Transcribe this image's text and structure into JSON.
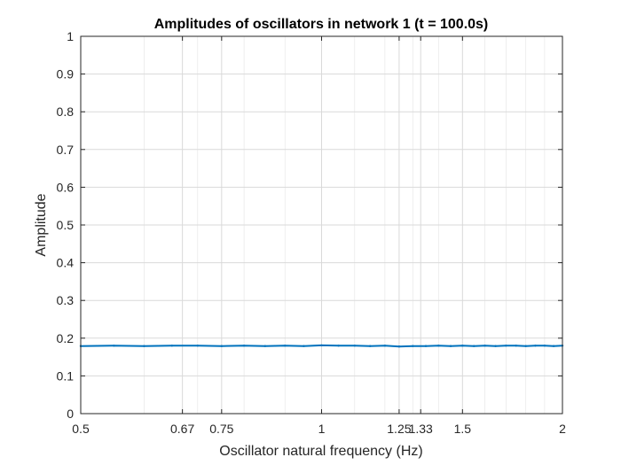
{
  "chart_data": {
    "type": "line",
    "title": "Amplitudes of oscillators in network 1 (t = 100.0s)",
    "xlabel": "Oscillator natural frequency (Hz)",
    "ylabel": "Amplitude",
    "x_scale": "log",
    "xlim": [
      0.5,
      2
    ],
    "ylim": [
      0,
      1
    ],
    "xticks": [
      0.5,
      0.67,
      0.75,
      1,
      1.25,
      1.33,
      1.5,
      2
    ],
    "xtick_labels": [
      "0.5",
      "0.67",
      "0.75",
      "1",
      "1.25",
      "1.33",
      "1.5",
      "2"
    ],
    "yticks": [
      0,
      0.1,
      0.2,
      0.3,
      0.4,
      0.5,
      0.6,
      0.7,
      0.8,
      0.9,
      1
    ],
    "ytick_labels": [
      "0",
      "0.1",
      "0.2",
      "0.3",
      "0.4",
      "0.5",
      "0.6",
      "0.7",
      "0.8",
      "0.9",
      "1"
    ],
    "minor_grid_x": [
      0.6,
      0.7,
      0.8,
      0.9,
      1.1,
      1.2,
      1.3,
      1.4,
      1.6,
      1.7,
      1.8,
      1.9
    ],
    "grid": true,
    "colors": {
      "series": "#0072BD",
      "grid": "#d9d9d9",
      "axis": "#262626"
    },
    "series": [
      {
        "x": [
          0.5,
          0.55,
          0.6,
          0.65,
          0.7,
          0.75,
          0.8,
          0.85,
          0.9,
          0.95,
          1.0,
          1.05,
          1.1,
          1.15,
          1.2,
          1.25,
          1.3,
          1.35,
          1.4,
          1.45,
          1.5,
          1.55,
          1.6,
          1.65,
          1.7,
          1.75,
          1.8,
          1.85,
          1.9,
          1.95,
          2.0
        ],
        "values": [
          0.179,
          0.18,
          0.179,
          0.18,
          0.18,
          0.179,
          0.18,
          0.179,
          0.18,
          0.179,
          0.181,
          0.18,
          0.18,
          0.179,
          0.18,
          0.178,
          0.179,
          0.179,
          0.18,
          0.179,
          0.18,
          0.179,
          0.18,
          0.179,
          0.18,
          0.18,
          0.179,
          0.18,
          0.18,
          0.179,
          0.18
        ]
      }
    ]
  }
}
